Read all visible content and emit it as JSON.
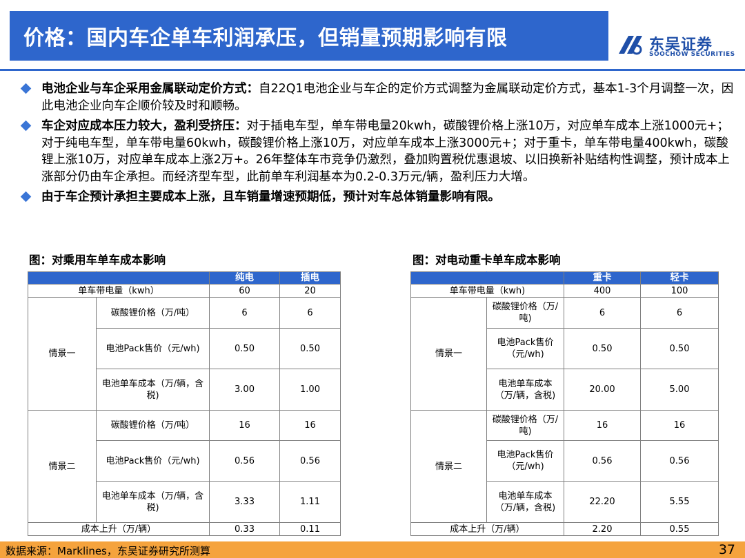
{
  "header": {
    "title": "价格：国内车企单车利润承压，但销量预期影响有限",
    "logo_cn": "东吴证券",
    "logo_en": "SOOCHOW SECURITIES"
  },
  "bullets": [
    {
      "strong": "电池企业与车企采用金属联动定价方式：",
      "text": "自22Q1电池企业与车企的定价方式调整为金属联动定价方式，基本1-3个月调整一次，因此电池企业向车企顺价较及时和顺畅。"
    },
    {
      "strong": "车企对应成本压力较大，盈利受挤压：",
      "text": "对于插电车型，单车带电量20kwh，碳酸锂价格上涨10万，对应单车成本上涨1000元+；对于纯电车型，单车带电量60kwh，碳酸锂价格上涨10万，对应单车成本上涨3000元+；对于重卡，单车带电量400kwh，碳酸锂上涨10万，对应单车成本上涨2万+。26年整体车市竞争仍激烈，叠加购置税优惠退坡、以旧换新补贴结构性调整，预计成本上涨部分仍由车企承担。而经济型车型，此前单车利润基本为0.2-0.3万元/辆，盈利压力大增。"
    },
    {
      "strong": "由于车企预计承担主要成本上涨，且车销量增速预期低，预计对车总体销量影响有限。",
      "text": ""
    }
  ],
  "left_table": {
    "figure_title": "图：对乘用车单车成本影响",
    "columns": [
      "纯电",
      "插电"
    ],
    "capacity_label": "单车带电量（kwh）",
    "capacity": [
      "60",
      "20"
    ],
    "scenario1": {
      "label": "情景一",
      "rows": [
        {
          "label": "碳酸锂价格（万/吨）",
          "v1": "6",
          "v2": "6"
        },
        {
          "label": "电池Pack售价（元/wh)",
          "v1": "0.50",
          "v2": "0.50"
        },
        {
          "label": "电池单车成本（万/辆，含税)",
          "v1": "3.00",
          "v2": "1.00"
        }
      ]
    },
    "scenario2": {
      "label": "情景二",
      "rows": [
        {
          "label": "碳酸锂价格（万/吨）",
          "v1": "16",
          "v2": "16"
        },
        {
          "label": "电池Pack售价（元/wh)",
          "v1": "0.56",
          "v2": "0.56"
        },
        {
          "label": "电池单车成本（万/辆，含税)",
          "v1": "3.33",
          "v2": "1.11"
        }
      ]
    },
    "increase_label": "成本上升（万/辆）",
    "increase": [
      "0.33",
      "0.11"
    ]
  },
  "right_table": {
    "figure_title": "图：对电动重卡单车成本影响",
    "columns": [
      "重卡",
      "轻卡"
    ],
    "capacity_label": "单车带电量（kwh)",
    "capacity": [
      "400",
      "100"
    ],
    "scenario1": {
      "label": "情景一",
      "rows": [
        {
          "label": "碳酸锂价格（万/吨)",
          "v1": "6",
          "v2": "6"
        },
        {
          "label": "电池Pack售价（元/wh)",
          "v1": "0.50",
          "v2": "0.50"
        },
        {
          "label": "电池单车成本（万/辆，含税)",
          "v1": "20.00",
          "v2": "5.00"
        }
      ]
    },
    "scenario2": {
      "label": "情景二",
      "rows": [
        {
          "label": "碳酸锂价格（万/吨)",
          "v1": "16",
          "v2": "16"
        },
        {
          "label": "电池Pack售价（元/wh)",
          "v1": "0.56",
          "v2": "0.56"
        },
        {
          "label": "电池单车成本（万/辆，含税)",
          "v1": "22.20",
          "v2": "5.55"
        }
      ]
    },
    "increase_label": "成本上升（万/辆）",
    "increase": [
      "2.20",
      "0.55"
    ]
  },
  "footer": {
    "source": "数据来源：Marklines，东吴证券研究所测算",
    "page": "37"
  },
  "colors": {
    "brand_blue": "#2e66cc",
    "footer_orange": "#f5a33d"
  }
}
